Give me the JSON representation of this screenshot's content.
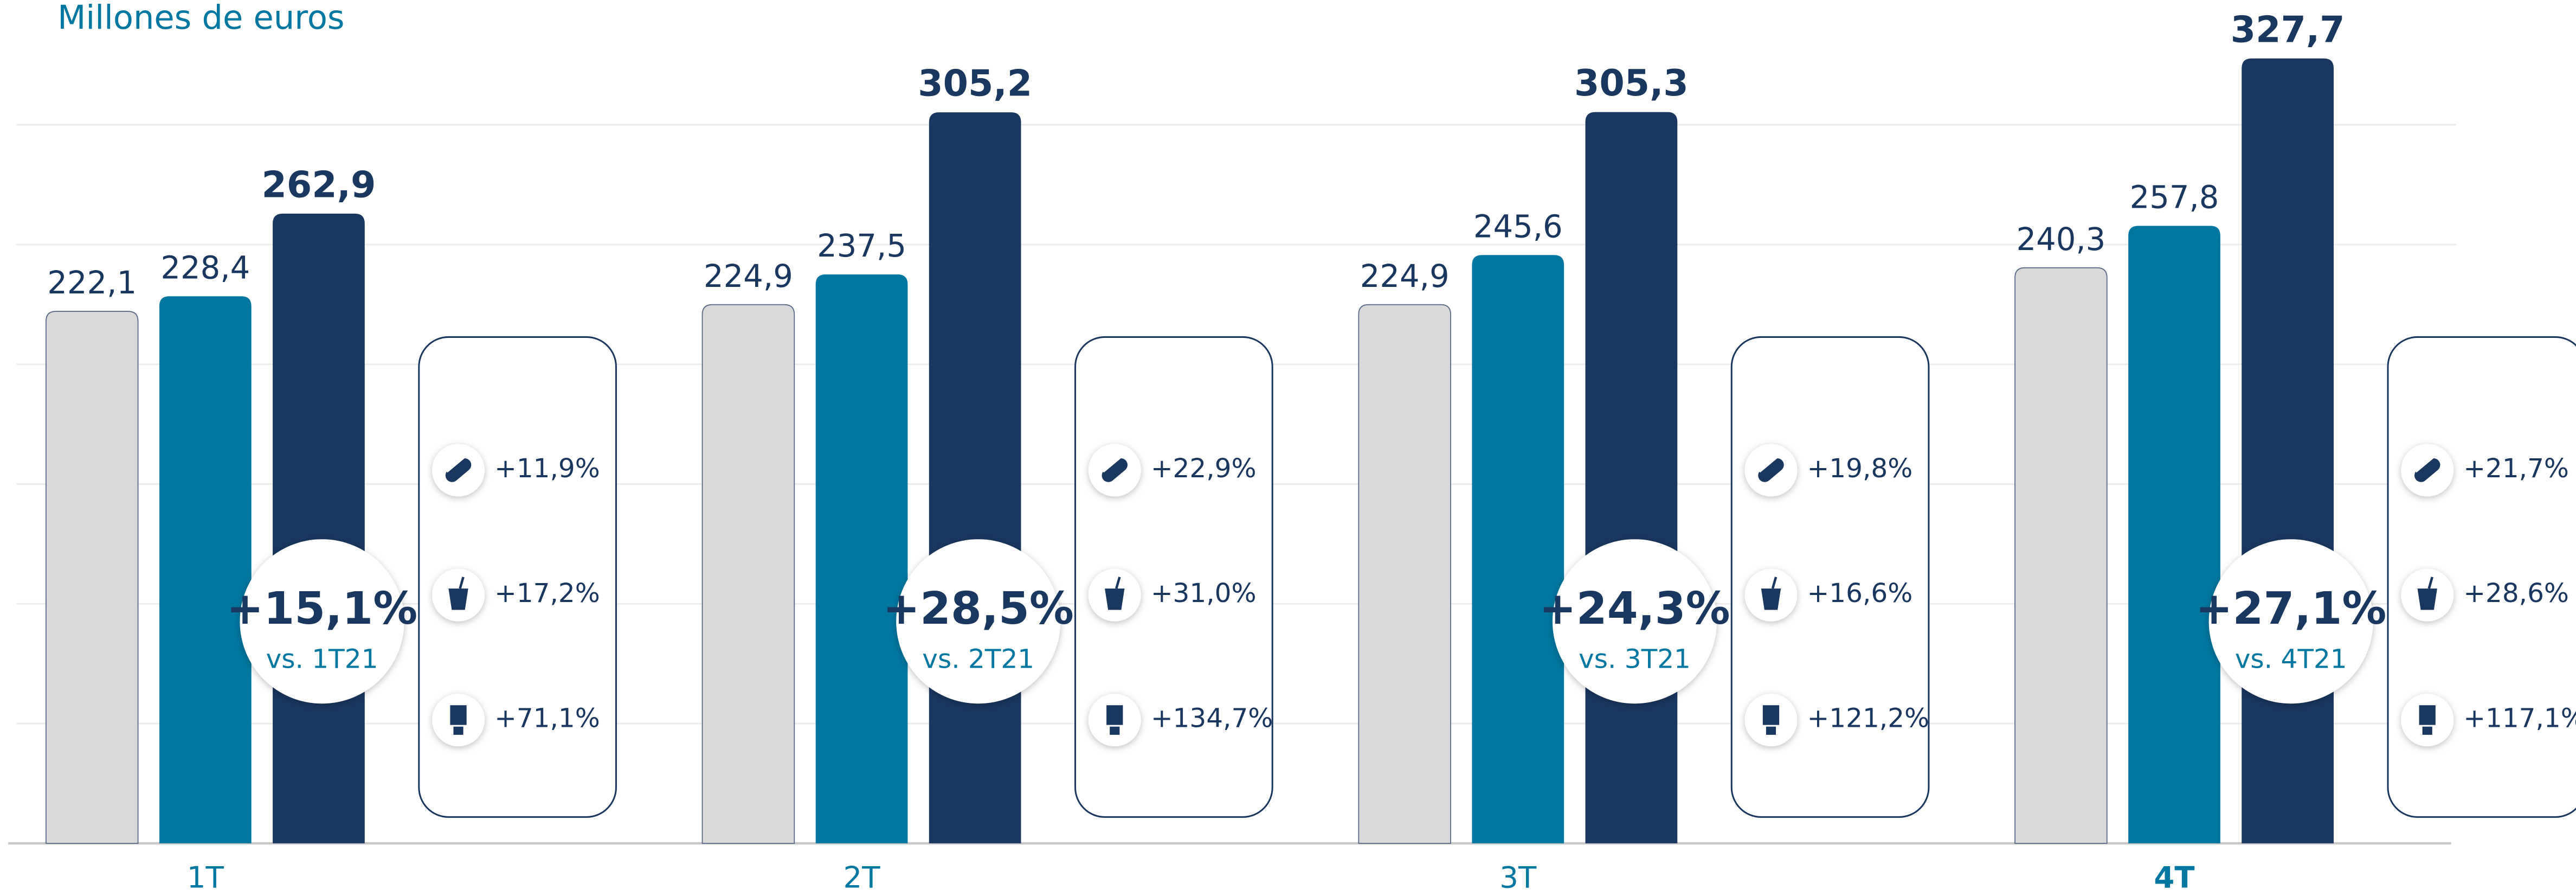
{
  "chart_data": {
    "type": "bar",
    "title": "Millones de euros",
    "categories": [
      "1T",
      "2T",
      "3T",
      "4T"
    ],
    "highlight_index": 3,
    "series": [
      {
        "color": "#d9d9d9",
        "values": [
          222.1,
          224.9,
          224.9,
          240.3
        ],
        "value_labels": [
          "222,1",
          "224,9",
          "224,9",
          "240,3"
        ]
      },
      {
        "color": "#0077a0",
        "values": [
          228.4,
          237.5,
          245.6,
          257.8
        ],
        "value_labels": [
          "228,4",
          "237,5",
          "245,6",
          "257,8"
        ]
      },
      {
        "color": "#1a3760",
        "values": [
          262.9,
          305.2,
          305.3,
          327.7
        ],
        "value_labels": [
          "262,9",
          "305,2",
          "305,3",
          "327,7"
        ]
      }
    ],
    "ylim": [
      0,
      350
    ],
    "yticks": [
      50,
      100,
      150,
      200,
      250,
      300
    ],
    "grid": true,
    "annotations": [
      {
        "change": "+15,1%",
        "comparison": "vs. 1T21",
        "breakdown": [
          "+11,9%",
          "+17,2%",
          "+71,1%"
        ]
      },
      {
        "change": "+28,5%",
        "comparison": "vs. 2T21",
        "breakdown": [
          "+22,9%",
          "+31,0%",
          "+134,7%"
        ]
      },
      {
        "change": "+24,3%",
        "comparison": "vs. 3T21",
        "breakdown": [
          "+19,8%",
          "+16,6%",
          "+121,2%"
        ]
      },
      {
        "change": "+27,1%",
        "comparison": "vs. 4T21",
        "breakdown": [
          "+21,7%",
          "+28,6%",
          "+117,1%"
        ]
      }
    ]
  }
}
